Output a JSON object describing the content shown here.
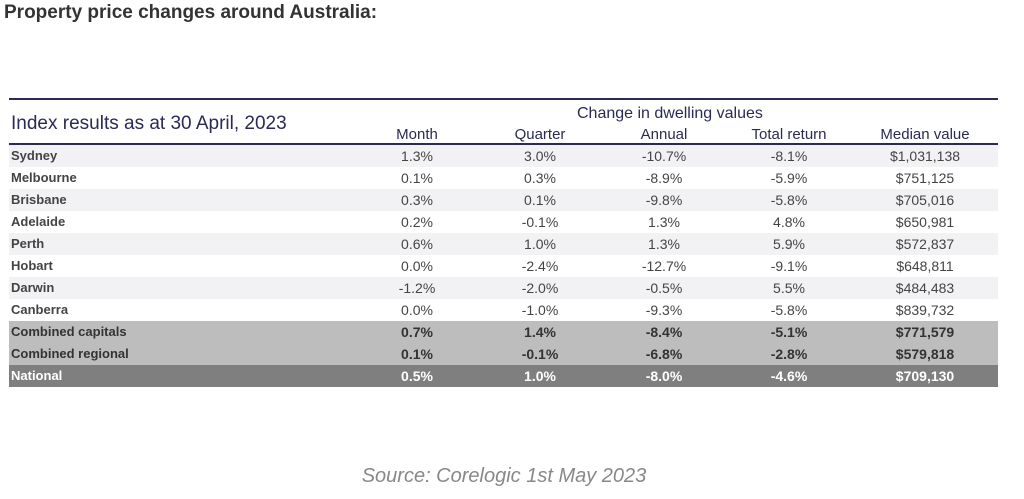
{
  "title": "Property price changes around Australia:",
  "table": {
    "caption": "Index results as at 30 April, 2023",
    "group_header": "Change in dwelling values",
    "columns": [
      "Month",
      "Quarter",
      "Annual",
      "Total return",
      "Median value"
    ],
    "rows": [
      {
        "name": "Sydney",
        "values": [
          "1.3%",
          "3.0%",
          "-10.7%",
          "-8.1%",
          "$1,031,138"
        ]
      },
      {
        "name": "Melbourne",
        "values": [
          "0.1%",
          "0.3%",
          "-8.9%",
          "-5.9%",
          "$751,125"
        ]
      },
      {
        "name": "Brisbane",
        "values": [
          "0.3%",
          "0.1%",
          "-9.8%",
          "-5.8%",
          "$705,016"
        ]
      },
      {
        "name": "Adelaide",
        "values": [
          "0.2%",
          "-0.1%",
          "1.3%",
          "4.8%",
          "$650,981"
        ]
      },
      {
        "name": "Perth",
        "values": [
          "0.6%",
          "1.0%",
          "1.3%",
          "5.9%",
          "$572,837"
        ]
      },
      {
        "name": "Hobart",
        "values": [
          "0.0%",
          "-2.4%",
          "-12.7%",
          "-9.1%",
          "$648,811"
        ]
      },
      {
        "name": "Darwin",
        "values": [
          "-1.2%",
          "-2.0%",
          "-0.5%",
          "5.5%",
          "$484,483"
        ]
      },
      {
        "name": "Canberra",
        "values": [
          "0.0%",
          "-1.0%",
          "-9.3%",
          "-5.8%",
          "$839,732"
        ]
      },
      {
        "name": "Combined capitals",
        "values": [
          "0.7%",
          "1.4%",
          "-8.4%",
          "-5.1%",
          "$771,579"
        ],
        "type": "comb"
      },
      {
        "name": "Combined regional",
        "values": [
          "0.1%",
          "-0.1%",
          "-6.8%",
          "-2.8%",
          "$579,818"
        ],
        "type": "comb"
      },
      {
        "name": "National",
        "values": [
          "0.5%",
          "1.0%",
          "-8.0%",
          "-4.6%",
          "$709,130"
        ],
        "type": "nat"
      }
    ]
  },
  "source": "Source: Corelogic 1st May 2023"
}
